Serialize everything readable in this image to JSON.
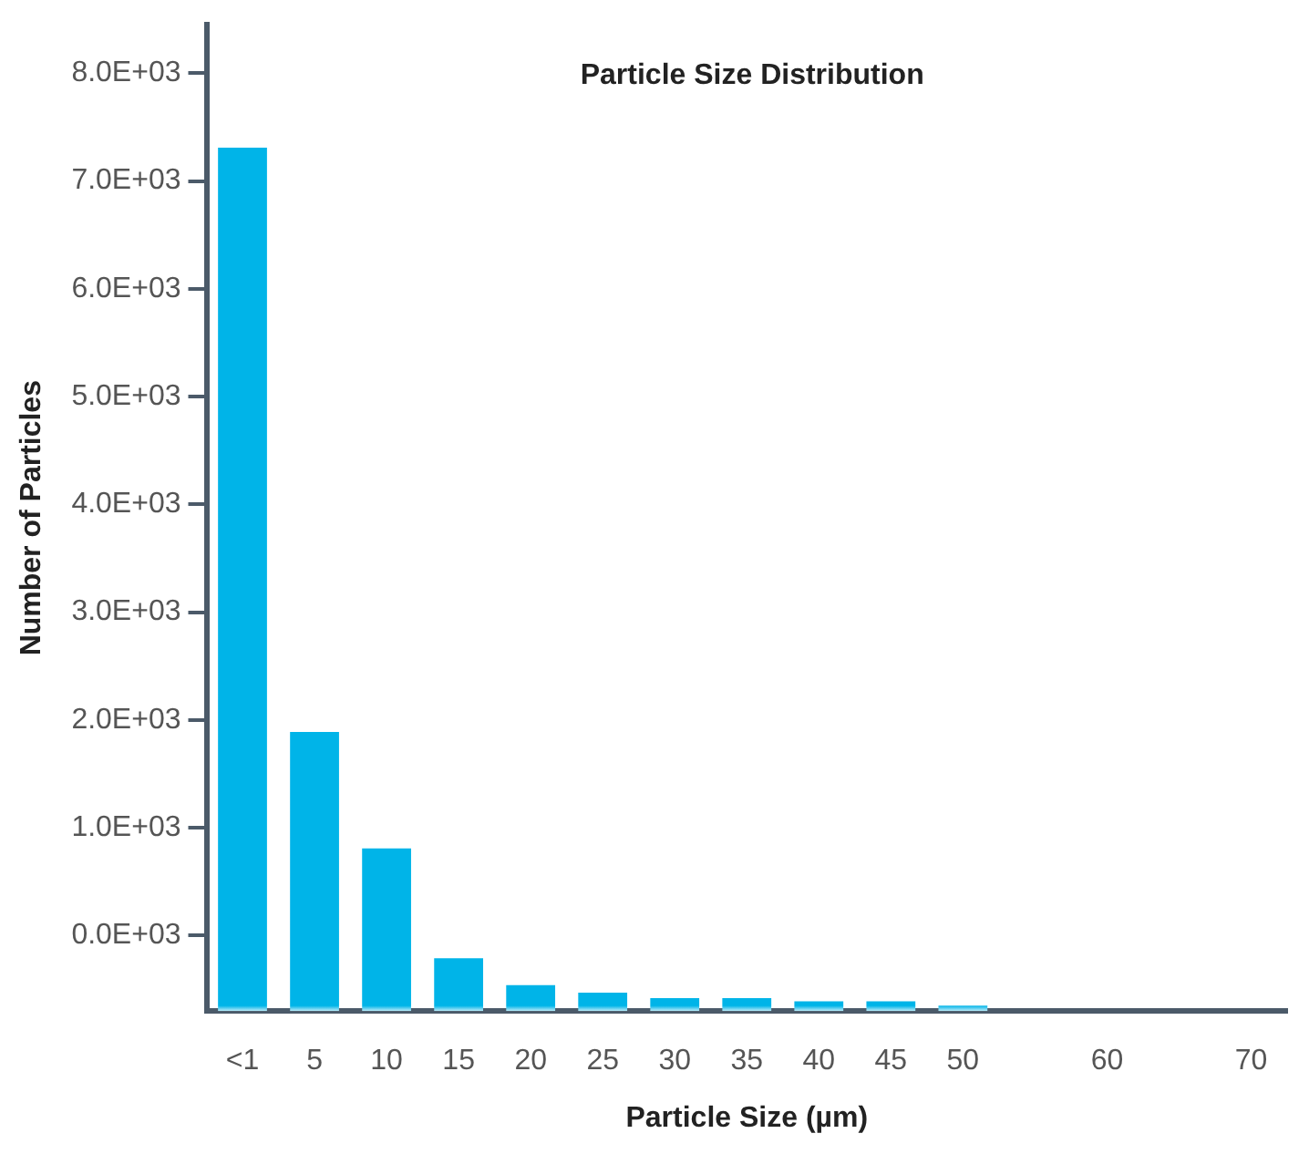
{
  "chart_data": {
    "type": "bar",
    "title": "Particle Size Distribution",
    "xlabel": "Particle Size (µm)",
    "ylabel": "Number of Particles",
    "categories": [
      "<1",
      "5",
      "10",
      "15",
      "20",
      "25",
      "30",
      "35",
      "40",
      "45",
      "50",
      null,
      "60",
      null,
      "70"
    ],
    "base": [
      -700,
      -700,
      -700,
      -700,
      -700,
      -700,
      -700,
      -700,
      -700,
      -700,
      -700,
      null,
      null,
      null,
      null
    ],
    "values": [
      8010,
      2590,
      1510,
      490,
      240,
      170,
      120,
      120,
      90,
      90,
      50,
      null,
      null,
      null,
      null
    ],
    "color": "#00b4e8",
    "ylim": [
      -700,
      8450
    ],
    "yticks": [
      {
        "value": 0,
        "label": "0.0E+03"
      },
      {
        "value": 1000,
        "label": "1.0E+03"
      },
      {
        "value": 2000,
        "label": "2.0E+03"
      },
      {
        "value": 3000,
        "label": "3.0E+03"
      },
      {
        "value": 4000,
        "label": "4.0E+03"
      },
      {
        "value": 5000,
        "label": "5.0E+03"
      },
      {
        "value": 6000,
        "label": "6.0E+03"
      },
      {
        "value": 7000,
        "label": "7.0E+03"
      },
      {
        "value": 8000,
        "label": "8.0E+03"
      }
    ],
    "grid": false,
    "legend": false
  }
}
